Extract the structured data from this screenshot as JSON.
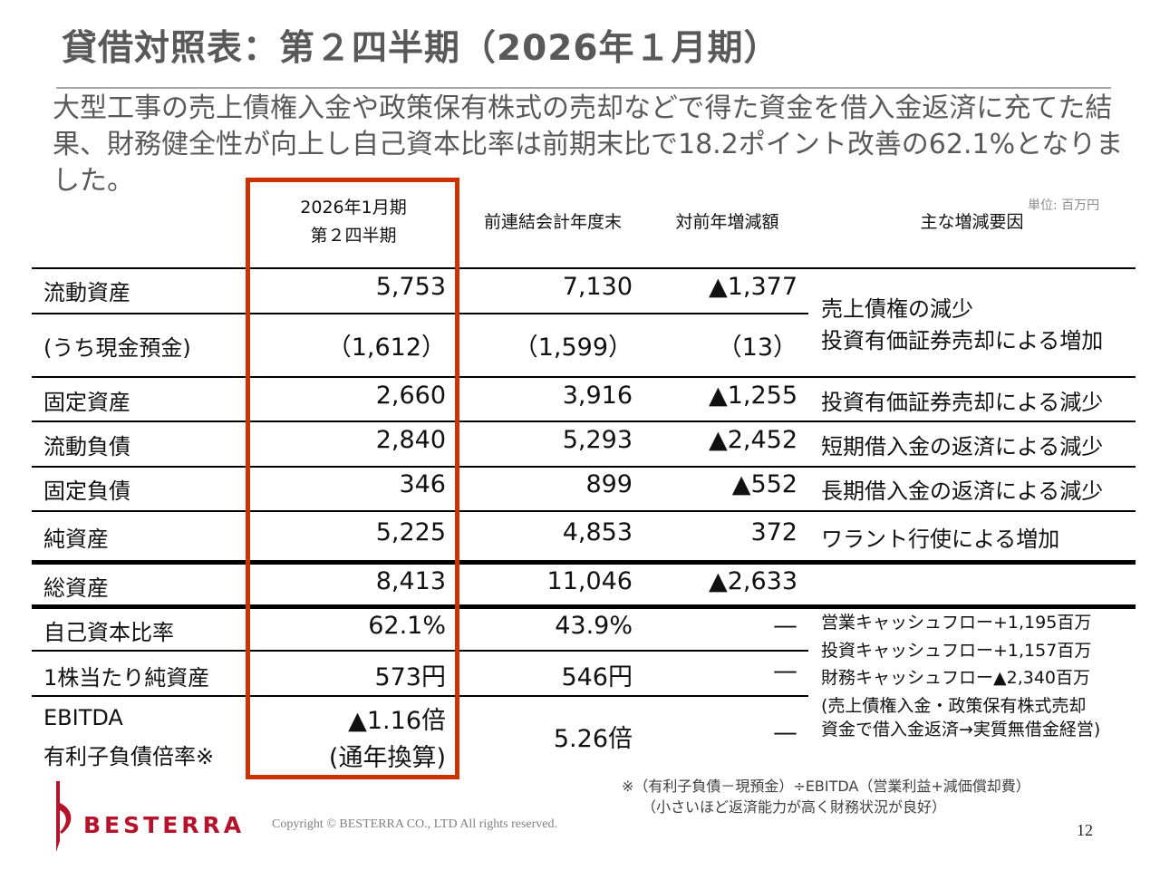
{
  "title": "貸借対照表：第２四半期（2026年１月期）",
  "summary": "大型工事の売上債権入金や政策保有株式の売却などで得た資金を借入金返済に充てた結果、財務健全性が向上し自己資本比率は前期末比で18.2ポイント改善の62.1%となりました。",
  "unit": "単位: 百万円",
  "headers": {
    "current": [
      "2026年1月期",
      "第２四半期"
    ],
    "previous": "前連結会計年度末",
    "diff": "対前年増減額",
    "reason": "主な増減要因"
  },
  "rows": {
    "current_assets": {
      "label": "流動資産",
      "current": "5,753",
      "previous": "7,130",
      "diff": "▲1,377"
    },
    "cash": {
      "label": "(うち現金預金)",
      "current": "（1,612）",
      "previous": "（1,599）",
      "diff": "（13）"
    },
    "current_reasons": [
      "売上債権の減少",
      "投資有価証券売却による増加"
    ],
    "fixed_assets": {
      "label": "固定資産",
      "current": "2,660",
      "previous": "3,916",
      "diff": "▲1,255",
      "reason": "投資有価証券売却による減少"
    },
    "current_liabilities": {
      "label": "流動負債",
      "current": "2,840",
      "previous": "5,293",
      "diff": "▲2,452",
      "reason": "短期借入金の返済による減少"
    },
    "fixed_liabilities": {
      "label": "固定負債",
      "current": "346",
      "previous": "899",
      "diff": "▲552",
      "reason": "長期借入金の返済による減少"
    },
    "net_assets": {
      "label": "純資産",
      "current": "5,225",
      "previous": "4,853",
      "diff": "372",
      "reason": "ワラント行使による増加"
    },
    "total_assets": {
      "label": "総資産",
      "current": "8,413",
      "previous": "11,046",
      "diff": "▲2,633"
    },
    "equity_ratio": {
      "label": "自己資本比率",
      "current": "62.1%",
      "previous": "43.9%",
      "diff": "—"
    },
    "bps": {
      "label": "1株当たり純資産",
      "current": "573円",
      "previous": "546円",
      "diff": "—"
    },
    "ebitda": {
      "label_line1": "EBITDA",
      "label_line2": "有利子負債倍率※",
      "current_line1": "▲1.16倍",
      "current_line2": "(通年換算)",
      "previous": "5.26倍",
      "diff": "—"
    },
    "cashflow_notes": [
      "営業キャッシュフロー+1,195百万",
      "投資キャッシュフロー+1,157百万",
      "財務キャッシュフロー▲2,340百万",
      "(売上債権入金・政策保有株式売却",
      "資金で借入金返済→実質無借金経営)"
    ]
  },
  "footnote": [
    "※（有利子負債－現預金）÷EBITDA（営業利益+減価償却費）",
    "（小さいほど返済能力が高く財務状況が良好）"
  ],
  "logo_text": "BESTERRA",
  "copyright": "Copyright © BESTERRA CO., LTD All rights reserved.",
  "page_number": "12",
  "colors": {
    "highlight": "#cc3300",
    "logo": "#b5122b",
    "title": "#595959"
  }
}
